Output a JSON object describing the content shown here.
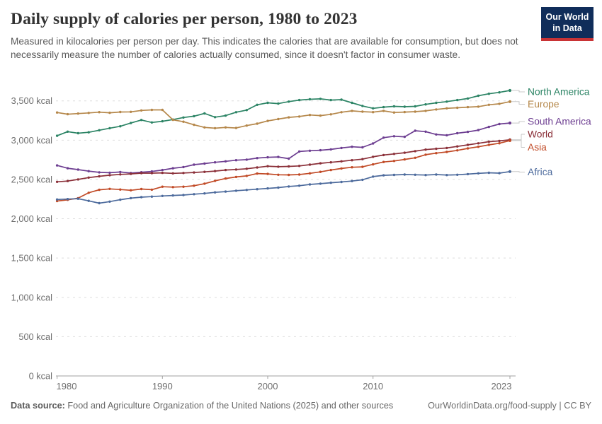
{
  "header": {
    "title": "Daily supply of calories per person, 1980 to 2023",
    "subtitle": "Measured in kilocalories per person per day. This indicates the calories that are available for consumption, but does not necessarily measure the number of calories actually consumed, since it doesn't factor in consumer waste.",
    "logo": {
      "line1": "Our World",
      "line2": "in Data",
      "bg_color": "#102D5A",
      "accent_color": "#C93335"
    }
  },
  "chart_data": {
    "type": "line",
    "title": "Daily supply of calories per person, 1980 to 2023",
    "ylabel": "",
    "xlabel": "",
    "unit": "kcal",
    "grid": "horizontal-dashed",
    "legend_position": "right-of-lines",
    "xlim": [
      1980,
      2023
    ],
    "ylim": [
      0,
      3500
    ],
    "xticks": [
      1980,
      1990,
      2000,
      2010,
      2023
    ],
    "yticks": [
      0,
      500,
      1000,
      1500,
      2000,
      2500,
      3000,
      3500
    ],
    "ytick_suffix": " kcal",
    "x": [
      1980,
      1981,
      1982,
      1983,
      1984,
      1985,
      1986,
      1987,
      1988,
      1989,
      1990,
      1991,
      1992,
      1993,
      1994,
      1995,
      1996,
      1997,
      1998,
      1999,
      2000,
      2001,
      2002,
      2003,
      2004,
      2005,
      2006,
      2007,
      2008,
      2009,
      2010,
      2011,
      2012,
      2013,
      2014,
      2015,
      2016,
      2017,
      2018,
      2019,
      2020,
      2021,
      2022,
      2023
    ],
    "series": [
      {
        "name": "North America",
        "color": "#2C8465",
        "values": [
          3056,
          3108,
          3088,
          3100,
          3126,
          3152,
          3176,
          3218,
          3256,
          3225,
          3240,
          3262,
          3288,
          3305,
          3340,
          3292,
          3312,
          3355,
          3382,
          3450,
          3475,
          3465,
          3490,
          3510,
          3520,
          3525,
          3510,
          3515,
          3475,
          3435,
          3405,
          3420,
          3430,
          3425,
          3430,
          3455,
          3475,
          3490,
          3510,
          3530,
          3565,
          3590,
          3608,
          3632
        ]
      },
      {
        "name": "Europe",
        "color": "#B5874A",
        "values": [
          3352,
          3330,
          3338,
          3346,
          3356,
          3348,
          3358,
          3360,
          3378,
          3385,
          3385,
          3258,
          3235,
          3195,
          3162,
          3152,
          3162,
          3155,
          3185,
          3210,
          3245,
          3268,
          3290,
          3300,
          3320,
          3312,
          3328,
          3355,
          3372,
          3362,
          3356,
          3372,
          3352,
          3357,
          3362,
          3372,
          3390,
          3405,
          3412,
          3420,
          3426,
          3450,
          3462,
          3490
        ]
      },
      {
        "name": "South America",
        "color": "#6D3E91",
        "values": [
          2678,
          2642,
          2625,
          2605,
          2590,
          2586,
          2595,
          2582,
          2592,
          2602,
          2620,
          2642,
          2658,
          2688,
          2702,
          2718,
          2730,
          2745,
          2752,
          2772,
          2782,
          2786,
          2765,
          2855,
          2865,
          2872,
          2882,
          2900,
          2916,
          2908,
          2958,
          3032,
          3050,
          3042,
          3120,
          3108,
          3072,
          3062,
          3088,
          3105,
          3128,
          3168,
          3205,
          3218
        ]
      },
      {
        "name": "World",
        "color": "#8B3039",
        "values": [
          2470,
          2480,
          2500,
          2524,
          2540,
          2554,
          2564,
          2570,
          2580,
          2580,
          2584,
          2578,
          2582,
          2588,
          2596,
          2606,
          2620,
          2626,
          2636,
          2652,
          2668,
          2662,
          2666,
          2672,
          2688,
          2705,
          2718,
          2730,
          2745,
          2758,
          2788,
          2810,
          2825,
          2840,
          2860,
          2880,
          2890,
          2900,
          2920,
          2940,
          2960,
          2980,
          2990,
          3005
        ]
      },
      {
        "name": "Asia",
        "color": "#C14A26",
        "values": [
          2225,
          2240,
          2262,
          2330,
          2368,
          2380,
          2372,
          2362,
          2378,
          2370,
          2408,
          2402,
          2408,
          2420,
          2446,
          2482,
          2512,
          2532,
          2545,
          2575,
          2570,
          2560,
          2558,
          2562,
          2578,
          2596,
          2620,
          2640,
          2655,
          2660,
          2692,
          2722,
          2735,
          2755,
          2775,
          2815,
          2835,
          2850,
          2870,
          2895,
          2916,
          2940,
          2961,
          2995
        ]
      },
      {
        "name": "Africa",
        "color": "#4C6A9C",
        "values": [
          2245,
          2250,
          2255,
          2228,
          2198,
          2218,
          2242,
          2262,
          2275,
          2282,
          2290,
          2296,
          2302,
          2312,
          2322,
          2336,
          2346,
          2356,
          2366,
          2376,
          2386,
          2396,
          2410,
          2420,
          2436,
          2446,
          2458,
          2468,
          2480,
          2496,
          2536,
          2552,
          2558,
          2562,
          2560,
          2556,
          2562,
          2556,
          2560,
          2568,
          2578,
          2585,
          2580,
          2600
        ]
      }
    ]
  },
  "footer": {
    "datasource_label": "Data source:",
    "datasource_text": " Food and Agriculture Organization of the United Nations (2025) and other sources",
    "link": "OurWorldinData.org/food-supply | CC BY"
  }
}
